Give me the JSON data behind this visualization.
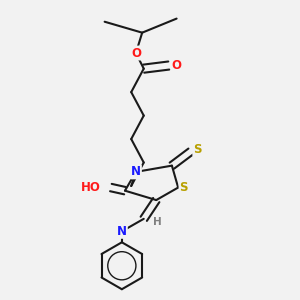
{
  "bg_color": "#f2f2f2",
  "bond_color": "#1a1a1a",
  "colors": {
    "N": "#1a1aff",
    "O": "#ff1a1a",
    "S": "#b8a000",
    "C": "#1a1a1a",
    "H": "#808080"
  },
  "bond_width": 1.5,
  "label_fontsize": 8.5,
  "label_fontsize_small": 7.5
}
